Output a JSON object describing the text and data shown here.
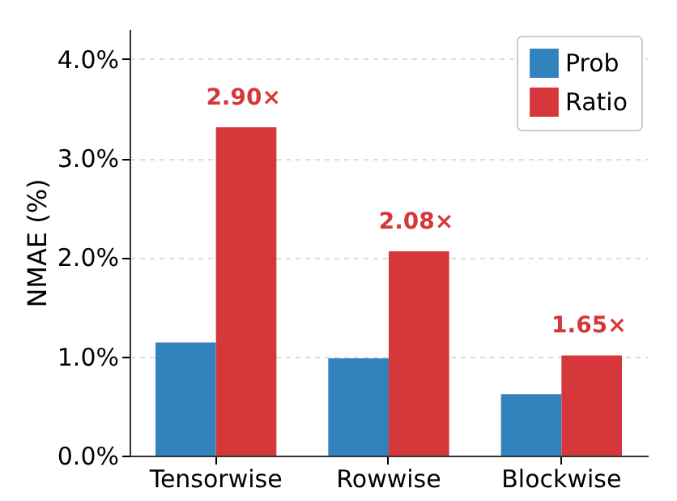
{
  "chart_data": {
    "type": "bar",
    "ylabel": "NMAE (%)",
    "categories": [
      "Tensorwise",
      "Rowwise",
      "Blockwise"
    ],
    "series": [
      {
        "name": "Prob",
        "color": "#3182bd",
        "values": [
          1.14,
          0.98,
          0.62
        ]
      },
      {
        "name": "Ratio",
        "color": "#d6373a",
        "values": [
          3.31,
          2.06,
          1.01
        ]
      }
    ],
    "ylim": [
      0,
      4.3
    ],
    "yticks": [
      {
        "value": 0,
        "label": "0.0%"
      },
      {
        "value": 1,
        "label": "1.0%"
      },
      {
        "value": 2,
        "label": "2.0%"
      },
      {
        "value": 3,
        "label": "3.0%"
      },
      {
        "value": 4,
        "label": "4.0%"
      }
    ],
    "annotations": [
      {
        "text": "2.90×",
        "x": "Tensorwise",
        "y": 3.31
      },
      {
        "text": "2.08×",
        "x": "Rowwise",
        "y": 2.06
      },
      {
        "text": "1.65×",
        "x": "Blockwise",
        "y": 1.01
      }
    ],
    "grid": "y",
    "legend": "top right"
  }
}
